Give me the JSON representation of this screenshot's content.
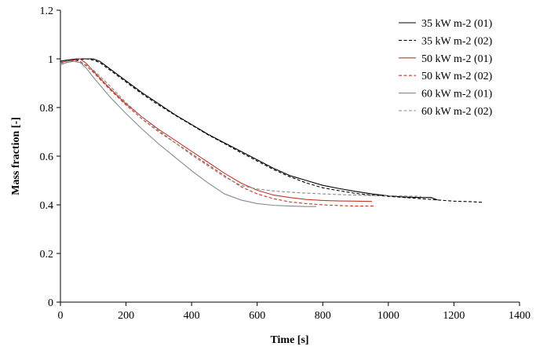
{
  "chart_data": {
    "type": "line",
    "title": "",
    "xlabel": "Time [s]",
    "ylabel": "Mass fraction [-]",
    "xlim": [
      0,
      1400
    ],
    "ylim": [
      0,
      1.2
    ],
    "xticks": [
      0,
      200,
      400,
      600,
      800,
      1000,
      1200,
      1400
    ],
    "yticks": [
      0,
      0.2,
      0.4,
      0.6,
      0.8,
      1,
      1.2
    ],
    "xtick_labels": [
      "0",
      "200",
      "400",
      "600",
      "800",
      "1000",
      "1200",
      "1400"
    ],
    "ytick_labels": [
      "0",
      "0.2",
      "0.4",
      "0.6",
      "0.8",
      "1",
      "1.2"
    ],
    "grid": false,
    "legend_position": "top-right",
    "series": [
      {
        "name": "35 kW m-2 (01)",
        "color": "#000000",
        "dash": "solid",
        "x": [
          0,
          20,
          50,
          80,
          100,
          120,
          150,
          200,
          250,
          300,
          350,
          400,
          450,
          500,
          550,
          600,
          650,
          700,
          750,
          800,
          850,
          900,
          950,
          1000,
          1050,
          1100,
          1130,
          1150
        ],
        "y": [
          0.99,
          0.995,
          1.0,
          1.0,
          1.0,
          0.99,
          0.96,
          0.91,
          0.86,
          0.815,
          0.77,
          0.73,
          0.69,
          0.655,
          0.62,
          0.585,
          0.55,
          0.52,
          0.5,
          0.48,
          0.467,
          0.455,
          0.445,
          0.437,
          0.432,
          0.43,
          0.43,
          0.42
        ]
      },
      {
        "name": "35 kW m-2 (02)",
        "color": "#000000",
        "dash": "dashed",
        "x": [
          0,
          20,
          50,
          80,
          100,
          120,
          150,
          200,
          250,
          300,
          350,
          400,
          450,
          500,
          550,
          600,
          650,
          700,
          750,
          800,
          850,
          900,
          950,
          1000,
          1050,
          1100,
          1150,
          1200,
          1250,
          1290
        ],
        "y": [
          0.985,
          0.99,
          0.995,
          1.0,
          0.995,
          0.985,
          0.955,
          0.905,
          0.855,
          0.81,
          0.768,
          0.728,
          0.688,
          0.652,
          0.615,
          0.58,
          0.545,
          0.515,
          0.49,
          0.47,
          0.458,
          0.447,
          0.44,
          0.435,
          0.43,
          0.425,
          0.42,
          0.415,
          0.413,
          0.41
        ]
      },
      {
        "name": "50 kW m-2 (01)",
        "color": "#c0392b",
        "dash": "solid",
        "x": [
          0,
          20,
          40,
          60,
          80,
          100,
          150,
          200,
          250,
          300,
          350,
          400,
          450,
          500,
          550,
          600,
          650,
          700,
          750,
          800,
          850,
          900,
          950
        ],
        "y": [
          0.985,
          0.99,
          0.995,
          1.0,
          0.98,
          0.95,
          0.88,
          0.815,
          0.76,
          0.71,
          0.665,
          0.62,
          0.575,
          0.53,
          0.49,
          0.46,
          0.44,
          0.43,
          0.422,
          0.418,
          0.416,
          0.415,
          0.414
        ]
      },
      {
        "name": "50 kW m-2 (02)",
        "color": "#c0392b",
        "dash": "dashed",
        "x": [
          0,
          20,
          40,
          60,
          80,
          100,
          150,
          200,
          250,
          300,
          350,
          400,
          450,
          500,
          550,
          600,
          650,
          700,
          750,
          800,
          850,
          900,
          960
        ],
        "y": [
          0.98,
          0.99,
          0.995,
          0.99,
          0.97,
          0.945,
          0.875,
          0.81,
          0.752,
          0.7,
          0.655,
          0.61,
          0.565,
          0.52,
          0.475,
          0.445,
          0.425,
          0.412,
          0.405,
          0.4,
          0.397,
          0.395,
          0.395
        ]
      },
      {
        "name": "60 kW m-2 (01)",
        "color": "#7f8c8d",
        "dash": "solid",
        "x": [
          0,
          20,
          40,
          60,
          80,
          100,
          150,
          200,
          250,
          300,
          350,
          400,
          450,
          500,
          550,
          600,
          650,
          700,
          750,
          780
        ],
        "y": [
          0.975,
          0.985,
          0.99,
          0.985,
          0.96,
          0.925,
          0.845,
          0.775,
          0.71,
          0.65,
          0.595,
          0.54,
          0.49,
          0.445,
          0.42,
          0.405,
          0.398,
          0.395,
          0.393,
          0.393
        ]
      },
      {
        "name": "60 kW m-2 (02)",
        "color": "#7f8c8d",
        "dash": "dashed",
        "x": [
          0,
          20,
          40,
          60,
          80,
          100,
          150,
          200,
          250,
          300,
          350,
          400,
          450,
          500,
          550,
          600,
          650,
          700,
          750,
          800,
          850,
          900,
          950,
          1000,
          1050,
          1100
        ],
        "y": [
          0.98,
          0.99,
          0.99,
          0.985,
          0.975,
          0.955,
          0.89,
          0.82,
          0.76,
          0.705,
          0.655,
          0.605,
          0.56,
          0.515,
          0.48,
          0.465,
          0.457,
          0.452,
          0.448,
          0.445,
          0.442,
          0.44,
          0.438,
          0.437,
          0.436,
          0.435
        ]
      }
    ]
  }
}
